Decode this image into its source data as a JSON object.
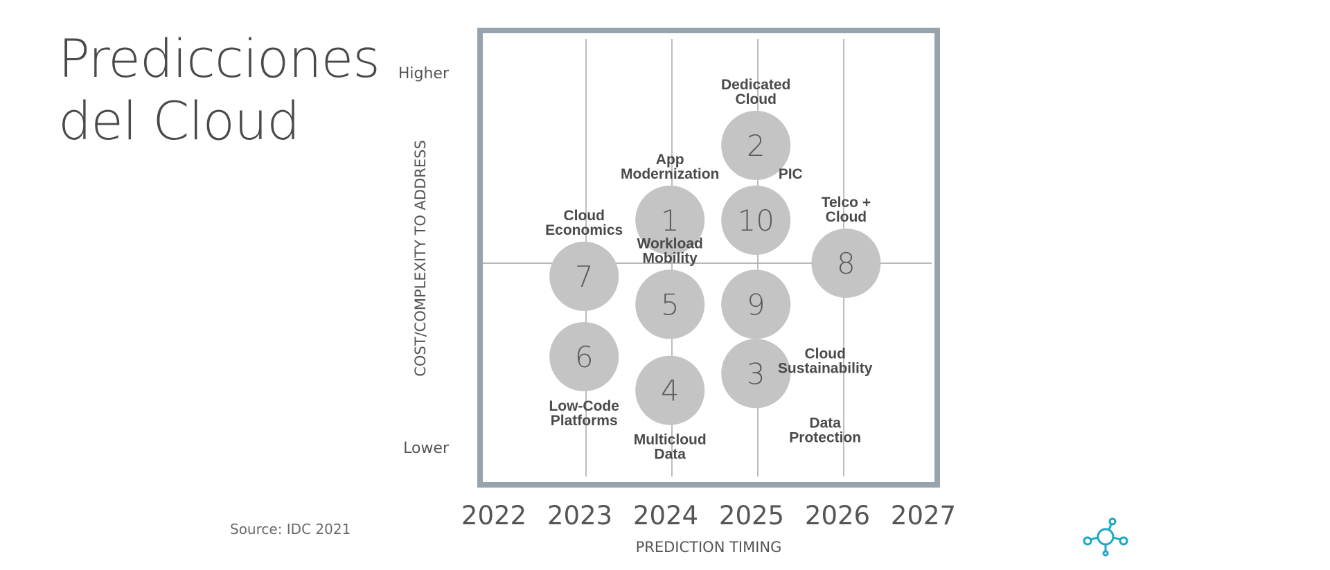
{
  "page": {
    "title_lines": [
      "Predicciones",
      "del Cloud"
    ],
    "source": "Source: IDC 2021"
  },
  "colors": {
    "bubble": "#c4c4c4",
    "frame": "#97a4ad",
    "grid": "#a0a0a0",
    "label": "#4a4a4a",
    "text": "#5a5a5a",
    "logo": "#1aa8c7"
  },
  "icons": {
    "logo": "network-nodes-icon"
  },
  "chart_data": {
    "type": "scatter",
    "title": "",
    "xlabel": "PREDICTION TIMING",
    "ylabel": "COST/COMPLEXITY TO ADDRESS",
    "x_ticks": [
      "2022",
      "2023",
      "2024",
      "2025",
      "2026",
      "2027"
    ],
    "xlim": [
      2022,
      2027
    ],
    "ylim": [
      0,
      10
    ],
    "y_ticks": [
      {
        "label": "Higher",
        "value": 10
      },
      {
        "label": "Lower",
        "value": 0
      }
    ],
    "grid": true,
    "points": [
      {
        "id": "1",
        "x": 2024.05,
        "y": 6.15,
        "label": [
          "App",
          "Modernization"
        ],
        "label_pos": "above"
      },
      {
        "id": "2",
        "x": 2025.05,
        "y": 8.15,
        "label": [
          "Dedicated",
          "Cloud"
        ],
        "label_pos": "above"
      },
      {
        "id": "3",
        "x": 2025.05,
        "y": 2.05,
        "label": [
          "Data",
          "Protection"
        ],
        "label_pos": "below-right"
      },
      {
        "id": "4",
        "x": 2024.05,
        "y": 1.6,
        "label": [
          "Multicloud",
          "Data"
        ],
        "label_pos": "below"
      },
      {
        "id": "5",
        "x": 2024.05,
        "y": 3.9,
        "label": [
          "Workload",
          "Mobility"
        ],
        "label_pos": "above"
      },
      {
        "id": "6",
        "x": 2023.05,
        "y": 2.5,
        "label": [
          "Low-Code",
          "Platforms"
        ],
        "label_pos": "below"
      },
      {
        "id": "7",
        "x": 2023.05,
        "y": 4.65,
        "label": [
          "Cloud",
          "Economics"
        ],
        "label_pos": "above"
      },
      {
        "id": "8",
        "x": 2026.1,
        "y": 5.0,
        "label": [
          "Telco +",
          "Cloud"
        ],
        "label_pos": "above"
      },
      {
        "id": "9",
        "x": 2025.05,
        "y": 3.9,
        "label": [
          "Cloud",
          "Sustainability"
        ],
        "label_pos": "below-right"
      },
      {
        "id": "10",
        "x": 2025.05,
        "y": 6.15,
        "label": [
          "PIC"
        ],
        "label_pos": "above-right"
      }
    ]
  }
}
